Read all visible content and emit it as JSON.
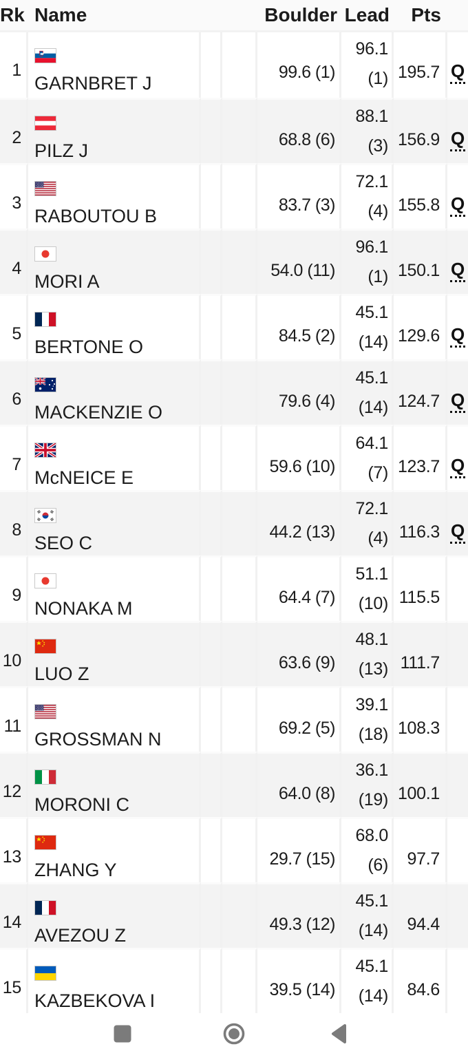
{
  "table": {
    "headers": {
      "rank": "Rk",
      "name": "Name",
      "boulder": "Boulder",
      "lead": "Lead",
      "pts": "Pts"
    },
    "qualified_label": "Q",
    "rows": [
      {
        "rank": "1",
        "flag": "slovenia",
        "name": "GARNBRET J",
        "boulder": "99.6 (1)",
        "lead_score": "96.1",
        "lead_rank": "(1)",
        "pts": "195.7",
        "qualified": true
      },
      {
        "rank": "2",
        "flag": "austria",
        "name": "PILZ J",
        "boulder": "68.8 (6)",
        "lead_score": "88.1",
        "lead_rank": "(3)",
        "pts": "156.9",
        "qualified": true
      },
      {
        "rank": "3",
        "flag": "usa",
        "name": "RABOUTOU B",
        "boulder": "83.7 (3)",
        "lead_score": "72.1",
        "lead_rank": "(4)",
        "pts": "155.8",
        "qualified": true
      },
      {
        "rank": "4",
        "flag": "japan",
        "name": "MORI A",
        "boulder": "54.0 (11)",
        "lead_score": "96.1",
        "lead_rank": "(1)",
        "pts": "150.1",
        "qualified": true
      },
      {
        "rank": "5",
        "flag": "france",
        "name": "BERTONE O",
        "boulder": "84.5 (2)",
        "lead_score": "45.1",
        "lead_rank": "(14)",
        "pts": "129.6",
        "qualified": true
      },
      {
        "rank": "6",
        "flag": "australia",
        "name": "MACKENZIE O",
        "boulder": "79.6 (4)",
        "lead_score": "45.1",
        "lead_rank": "(14)",
        "pts": "124.7",
        "qualified": true
      },
      {
        "rank": "7",
        "flag": "great-britain",
        "name": "McNEICE E",
        "boulder": "59.6 (10)",
        "lead_score": "64.1",
        "lead_rank": "(7)",
        "pts": "123.7",
        "qualified": true
      },
      {
        "rank": "8",
        "flag": "south-korea",
        "name": "SEO C",
        "boulder": "44.2 (13)",
        "lead_score": "72.1",
        "lead_rank": "(4)",
        "pts": "116.3",
        "qualified": true
      },
      {
        "rank": "9",
        "flag": "japan",
        "name": "NONAKA M",
        "boulder": "64.4 (7)",
        "lead_score": "51.1",
        "lead_rank": "(10)",
        "pts": "115.5",
        "qualified": false
      },
      {
        "rank": "10",
        "flag": "china",
        "name": "LUO Z",
        "boulder": "63.6 (9)",
        "lead_score": "48.1",
        "lead_rank": "(13)",
        "pts": "111.7",
        "qualified": false
      },
      {
        "rank": "11",
        "flag": "usa",
        "name": "GROSSMAN N",
        "boulder": "69.2 (5)",
        "lead_score": "39.1",
        "lead_rank": "(18)",
        "pts": "108.3",
        "qualified": false
      },
      {
        "rank": "12",
        "flag": "italy",
        "name": "MORONI C",
        "boulder": "64.0 (8)",
        "lead_score": "36.1",
        "lead_rank": "(19)",
        "pts": "100.1",
        "qualified": false
      },
      {
        "rank": "13",
        "flag": "china",
        "name": "ZHANG Y",
        "boulder": "29.7 (15)",
        "lead_score": "68.0",
        "lead_rank": "(6)",
        "pts": "97.7",
        "qualified": false
      },
      {
        "rank": "14",
        "flag": "france",
        "name": "AVEZOU Z",
        "boulder": "49.3 (12)",
        "lead_score": "45.1",
        "lead_rank": "(14)",
        "pts": "94.4",
        "qualified": false
      },
      {
        "rank": "15",
        "flag": "ukraine",
        "name": "KAZBEKOVA I",
        "boulder": "39.5 (14)",
        "lead_score": "45.1",
        "lead_rank": "(14)",
        "pts": "84.6",
        "qualified": false
      }
    ]
  },
  "nav_bar": {
    "recents_icon": "recents-square-icon",
    "home_icon": "home-circle-icon",
    "back_icon": "back-triangle-icon"
  },
  "colors": {
    "row_alt": "#f3f3f3",
    "separator": "#f1f1f1",
    "header_bg": "#fafafa",
    "text": "#1c1c1c",
    "nav_icon": "#7b7b7b",
    "qualified_text": "#111111"
  }
}
